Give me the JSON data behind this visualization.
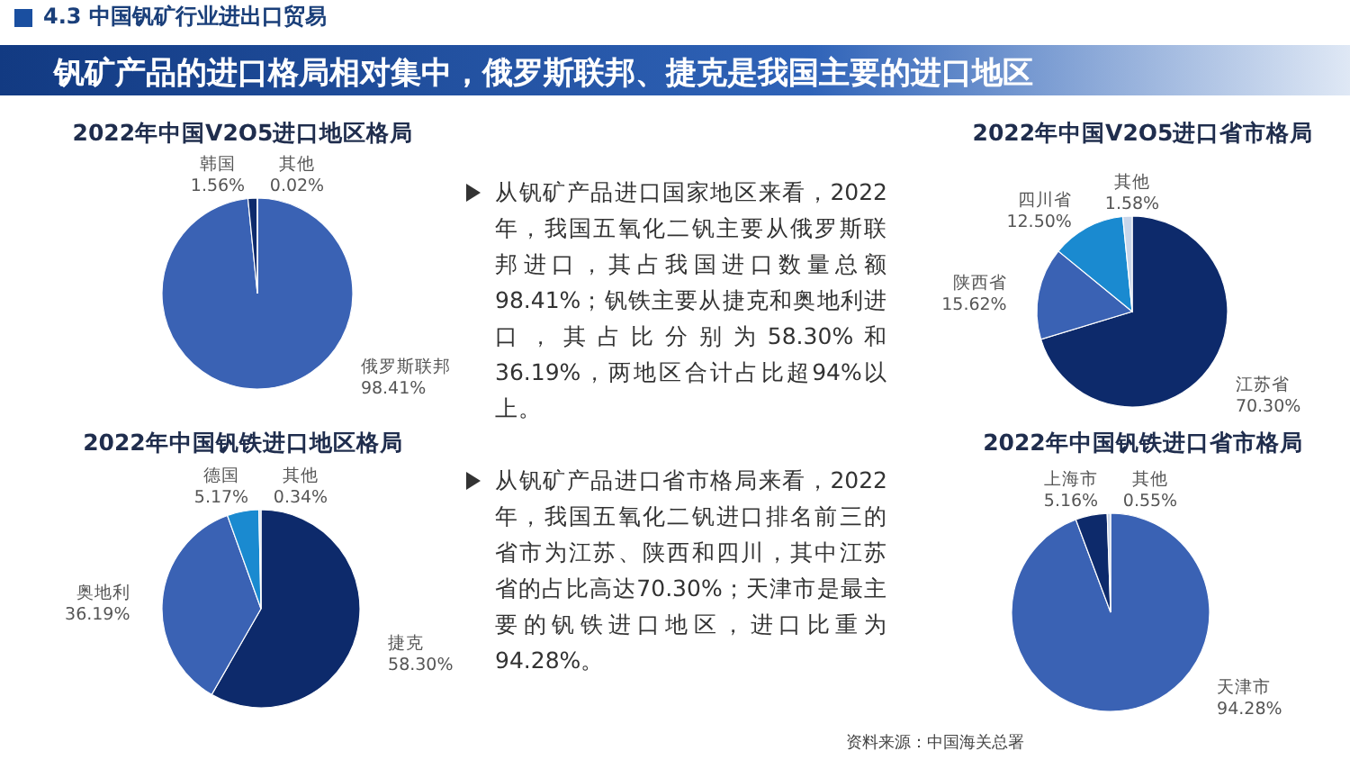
{
  "chart_data": [
    {
      "type": "other",
      "title": "4.3 中国钒矿行业进出口贸易",
      "subtitle": "钒矿产品的进口格局相对集中，俄罗斯联邦、捷克是我国主要的进口地区",
      "annotations": [
        "从钒矿产品进口国家地区来看，2022年，我国五氧化二钒主要从俄罗斯联邦进口，其占我国进口数量总额98.41%；钒铁主要从捷克和奥地利进口，其占比分别为58.30%和36.19%，两地区合计占比超94%以上。",
        "从钒矿产品进口省市格局来看，2022年，我国五氧化二钒进口排名前三的省市为江苏、陕西和四川，其中江苏省的占比高达70.30%；天津市是最主要的钒铁进口地区，进口比重为94.28%。",
        "资料来源：中国海关总署"
      ]
    },
    {
      "type": "pie",
      "title": "2022年中国V2O5进口地区格局",
      "categories": [
        "俄罗斯联邦",
        "韩国",
        "其他"
      ],
      "values": [
        98.41,
        1.56,
        0.02
      ],
      "colors": [
        "#3a62b4",
        "#0d2a6b",
        "#c9d6ea"
      ],
      "value_labels": [
        "98.41%",
        "1.56%",
        "0.02%"
      ]
    },
    {
      "type": "pie",
      "title": "2022年中国V2O5进口省市格局",
      "categories": [
        "江苏省",
        "陕西省",
        "四川省",
        "其他"
      ],
      "values": [
        70.3,
        15.62,
        12.5,
        1.58
      ],
      "colors": [
        "#0d2a6b",
        "#3a62b4",
        "#1a8ad0",
        "#c9d6ea"
      ],
      "value_labels": [
        "70.30%",
        "15.62%",
        "12.50%",
        "1.58%"
      ]
    },
    {
      "type": "pie",
      "title": "2022年中国钒铁进口地区格局",
      "categories": [
        "捷克",
        "奥地利",
        "德国",
        "其他"
      ],
      "values": [
        58.3,
        36.19,
        5.17,
        0.34
      ],
      "colors": [
        "#0d2a6b",
        "#3a62b4",
        "#1a8ad0",
        "#c9d6ea"
      ],
      "value_labels": [
        "58.30%",
        "36.19%",
        "5.17%",
        "0.34%"
      ]
    },
    {
      "type": "pie",
      "title": "2022年中国钒铁进口省市格局",
      "categories": [
        "天津市",
        "上海市",
        "其他"
      ],
      "values": [
        94.28,
        5.16,
        0.55
      ],
      "colors": [
        "#3a62b4",
        "#0d2a6b",
        "#c9d6ea"
      ],
      "value_labels": [
        "94.28%",
        "5.16%",
        "0.55%"
      ]
    }
  ]
}
